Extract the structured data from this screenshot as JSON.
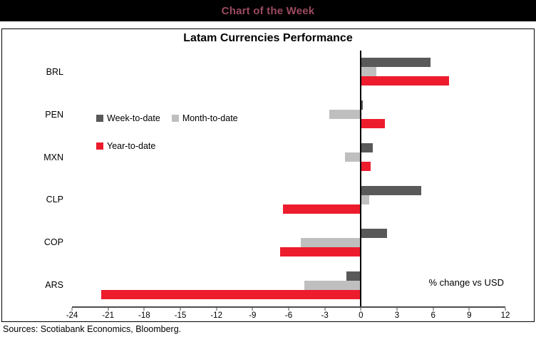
{
  "header": {
    "title": "Chart of the Week",
    "title_color": "#9d4a5f",
    "bar_color": "#000000"
  },
  "chart_data": {
    "type": "bar",
    "orientation": "horizontal",
    "title": "Latam Currencies Performance",
    "annotation": "% change vs USD",
    "categories": [
      "BRL",
      "PEN",
      "MXN",
      "CLP",
      "COP",
      "ARS"
    ],
    "series": [
      {
        "name": "Week-to-date",
        "color": "#595959",
        "values": [
          5.8,
          0.15,
          1.0,
          5.0,
          2.2,
          -1.2
        ]
      },
      {
        "name": "Month-to-date",
        "color": "#bfbfbf",
        "values": [
          1.3,
          -2.6,
          -1.3,
          0.7,
          -5.0,
          -4.7
        ]
      },
      {
        "name": "Year-to-date",
        "color": "#ed1c2d",
        "values": [
          7.3,
          2.0,
          0.8,
          -6.5,
          -6.7,
          -21.6
        ]
      }
    ],
    "xlim": [
      -24,
      12
    ],
    "xticks": [
      -24,
      -21,
      -18,
      -15,
      -12,
      -9,
      -6,
      -3,
      0,
      3,
      6,
      9,
      12
    ],
    "grid": false,
    "legend_position": "inside-upper-left"
  },
  "footer": {
    "sources": "Sources: Scotiabank Economics, Bloomberg."
  }
}
